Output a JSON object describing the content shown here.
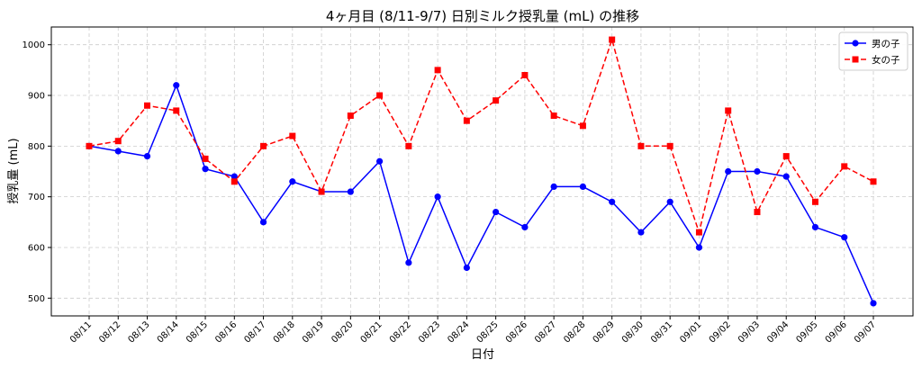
{
  "chart_data": {
    "type": "line",
    "title": "4ヶ月目 (8/11-9/7) 日別ミルク授乳量 (mL) の推移",
    "xlabel": "日付",
    "ylabel": "授乳量 (mL)",
    "categories": [
      "08/11",
      "08/12",
      "08/13",
      "08/14",
      "08/15",
      "08/16",
      "08/17",
      "08/18",
      "08/19",
      "08/20",
      "08/21",
      "08/22",
      "08/23",
      "08/24",
      "08/25",
      "08/26",
      "08/27",
      "08/28",
      "08/29",
      "08/30",
      "08/31",
      "09/01",
      "09/02",
      "09/03",
      "09/04",
      "09/05",
      "09/06",
      "09/07"
    ],
    "ylim": [
      465,
      1035
    ],
    "yticks": [
      500,
      600,
      700,
      800,
      900,
      1000
    ],
    "grid": true,
    "legend_position": "top-right",
    "series": [
      {
        "name": "男の子",
        "color": "#0000ff",
        "line_style": "solid",
        "marker": "circle",
        "values": [
          800,
          790,
          780,
          920,
          755,
          740,
          650,
          730,
          710,
          710,
          770,
          570,
          700,
          560,
          670,
          640,
          720,
          720,
          690,
          630,
          690,
          600,
          750,
          750,
          740,
          640,
          620,
          490
        ]
      },
      {
        "name": "女の子",
        "color": "#ff0000",
        "line_style": "dashed",
        "marker": "square",
        "values": [
          800,
          810,
          880,
          870,
          775,
          730,
          800,
          820,
          710,
          860,
          900,
          800,
          950,
          850,
          890,
          940,
          860,
          840,
          1010,
          800,
          800,
          630,
          870,
          670,
          780,
          690,
          760,
          730
        ]
      }
    ]
  }
}
